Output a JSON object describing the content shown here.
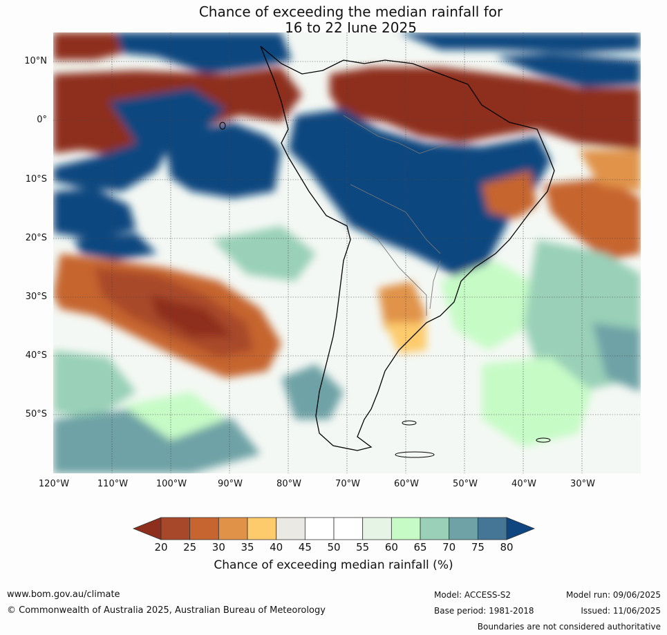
{
  "title": {
    "line1": "Chance of exceeding the median rainfall for",
    "line2": "16 to 22 June 2025"
  },
  "map": {
    "lat_labels": [
      "10°N",
      "0°",
      "10°S",
      "20°S",
      "30°S",
      "40°S",
      "50°S"
    ],
    "lon_labels": [
      "120°W",
      "110°W",
      "100°W",
      "90°W",
      "80°W",
      "70°W",
      "60°W",
      "50°W",
      "40°W",
      "30°W"
    ]
  },
  "legend": {
    "title": "Chance of exceeding median rainfall (%)",
    "ticks": [
      "20",
      "25",
      "30",
      "35",
      "40",
      "45",
      "50",
      "55",
      "60",
      "65",
      "70",
      "75",
      "80"
    ],
    "colors": [
      "#8e2e1c",
      "#a8482a",
      "#c6652f",
      "#e09348",
      "#fdcb6c",
      "#ebe9e4",
      "#ffffff",
      "#ffffff",
      "#e6f4e6",
      "#c6fbc6",
      "#99d0b7",
      "#6ea2a6",
      "#457696",
      "#0f467f"
    ]
  },
  "footer": {
    "website": "www.bom.gov.au/climate",
    "copyright": "© Commonwealth of Australia 2025, Australian Bureau of Meteorology",
    "model": "Model: ACCESS-S2",
    "base_period": "Base period: 1981-2018",
    "model_run": "Model run: 09/06/2025",
    "issued": "Issued: 11/06/2025",
    "disclaimer": "Boundaries are not considered authoritative"
  }
}
